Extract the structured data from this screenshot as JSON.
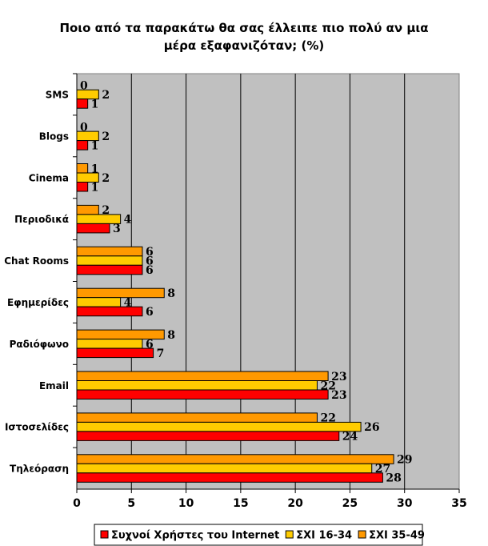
{
  "chart_data": {
    "type": "bar",
    "orientation": "horizontal",
    "title_lines": [
      "Ποιο από τα παρακάτω θα σας έλλειπε πιο πολύ αν μια",
      "μέρα εξαφανιζόταν; (%)"
    ],
    "categories": [
      "SMS",
      "Blogs",
      "Cinema",
      "Περιοδικά",
      "Chat Rooms",
      "Εφημερίδες",
      "Ραδιόφωνο",
      "Email",
      "Ιστοσελίδες",
      "Τηλεόραση"
    ],
    "series": [
      {
        "name": "Συχνοί Χρήστες του Internet",
        "color": "#ff0000",
        "values": [
          1,
          1,
          1,
          3,
          6,
          6,
          7,
          23,
          24,
          28
        ]
      },
      {
        "name": "ΣΧΙ 16-34",
        "color": "#ffcc00",
        "values": [
          2,
          2,
          2,
          4,
          6,
          4,
          6,
          22,
          26,
          27
        ]
      },
      {
        "name": "ΣΧΙ 35-49",
        "color": "#ff9900",
        "values": [
          0,
          0,
          1,
          2,
          6,
          8,
          8,
          23,
          22,
          29
        ]
      }
    ],
    "xlim": [
      0,
      35
    ],
    "xticks": [
      "0",
      "5",
      "10",
      "15",
      "20",
      "25",
      "30",
      "35"
    ],
    "plot_background": "#c0c0c0",
    "grid": true,
    "legend_position": "bottom"
  }
}
